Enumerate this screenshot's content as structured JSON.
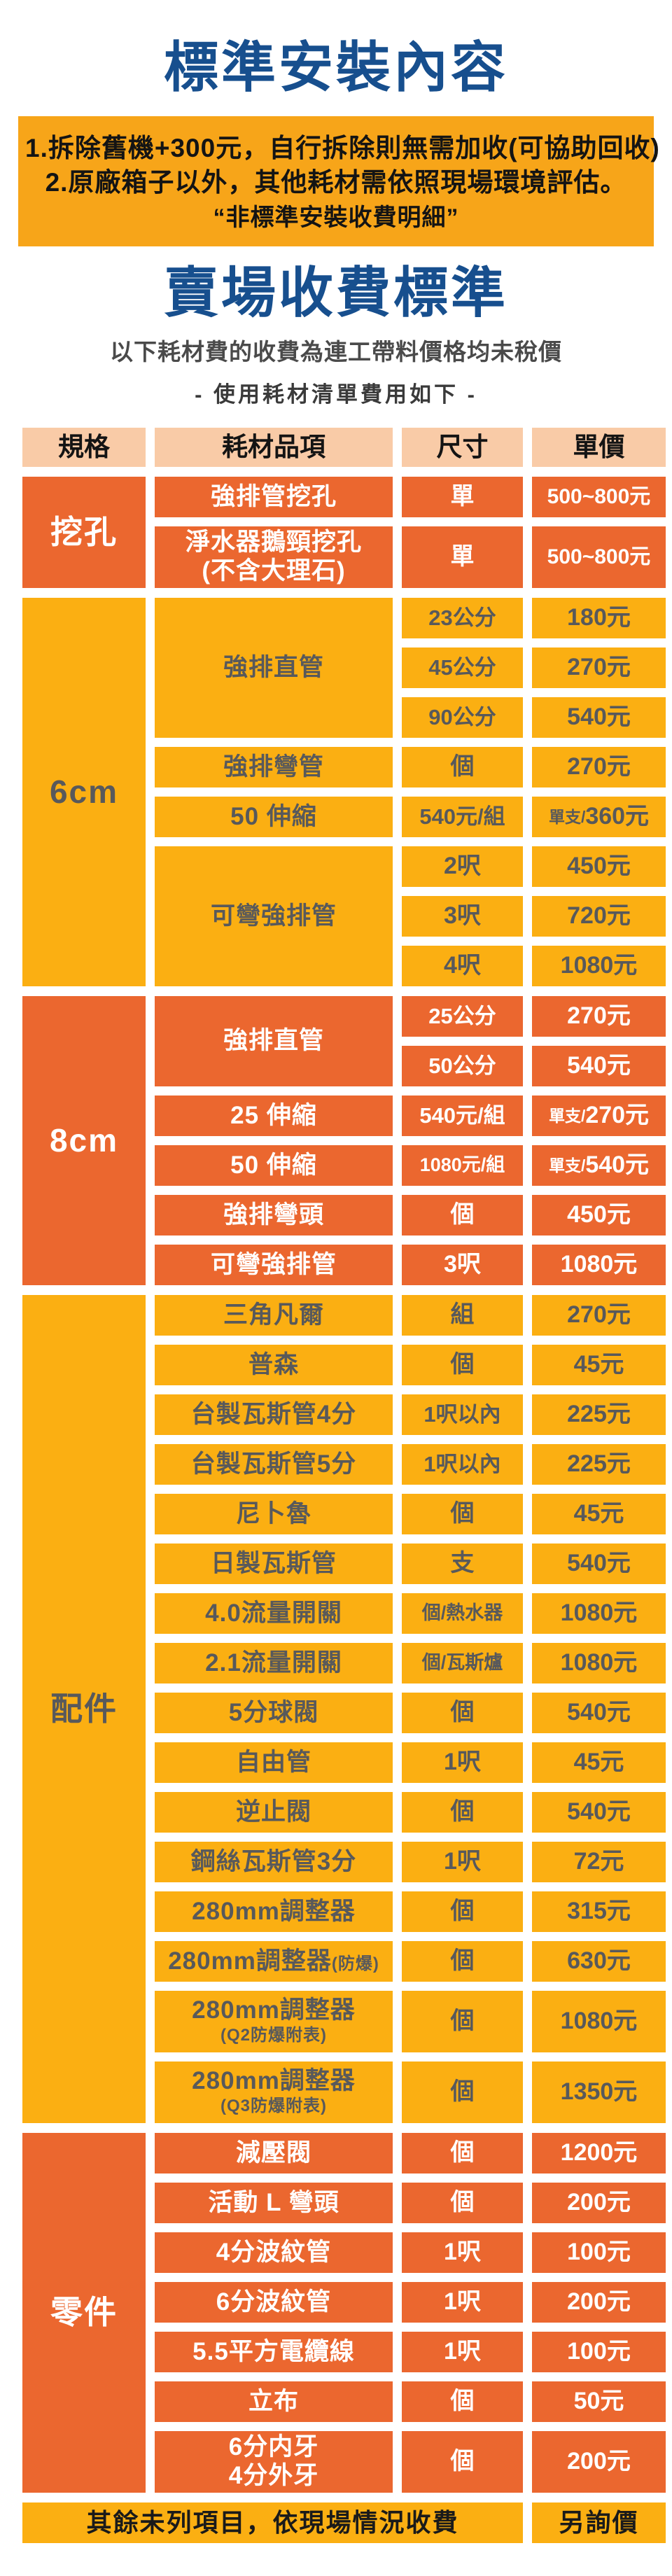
{
  "page": {
    "title1": "標準安裝內容",
    "notes": [
      "1.拆除舊機+300元，自行拆除則無需加收(可協助回收)",
      "2.原廠箱子以外，其他耗材需依照現場環境評估。",
      "“非標準安裝收費明細”"
    ],
    "title2": "賣場收費標準",
    "subtitle1": "以下耗材費的收費為連工帶料價格均未稅價",
    "subtitle2": "- 使用耗材清單費用如下 -"
  },
  "table": {
    "headers": [
      "規格",
      "耗材品項",
      "尺寸",
      "單價"
    ],
    "sections": [
      {
        "label": "挖孔",
        "theme": "dark",
        "groups": [
          {
            "item": "強排管挖孔",
            "rows": [
              {
                "size": "單",
                "price": "500~800元"
              }
            ]
          },
          {
            "item": "淨水器鵝頸挖孔",
            "item_sub": "(不含大理石)",
            "sub_big": true,
            "rows": [
              {
                "size": "單",
                "price": "500~800元",
                "tall": true
              }
            ]
          }
        ]
      },
      {
        "label": "6cm",
        "theme": "yellow",
        "groups": [
          {
            "item": "強排直管",
            "rows": [
              {
                "size": "23公分",
                "price": "180元"
              },
              {
                "size": "45公分",
                "price": "270元"
              },
              {
                "size": "90公分",
                "price": "540元"
              }
            ]
          },
          {
            "item": "強排彎管",
            "rows": [
              {
                "size": "個",
                "price": "270元"
              }
            ]
          },
          {
            "item": "50 伸縮",
            "rows": [
              {
                "size": "540元/組",
                "price": "360元",
                "price_prefix": "單支/"
              }
            ]
          },
          {
            "item": "可彎強排管",
            "rows": [
              {
                "size": "2呎",
                "price": "450元"
              },
              {
                "size": "3呎",
                "price": "720元"
              },
              {
                "size": "4呎",
                "price": "1080元"
              }
            ]
          }
        ]
      },
      {
        "label": "8cm",
        "theme": "dark",
        "groups": [
          {
            "item": "強排直管",
            "rows": [
              {
                "size": "25公分",
                "price": "270元"
              },
              {
                "size": "50公分",
                "price": "540元"
              }
            ]
          },
          {
            "item": "25 伸縮",
            "rows": [
              {
                "size": "540元/組",
                "price": "270元",
                "price_prefix": "單支/"
              }
            ]
          },
          {
            "item": "50 伸縮",
            "rows": [
              {
                "size": "1080元/組",
                "price": "540元",
                "price_prefix": "單支/",
                "size_small": true
              }
            ]
          },
          {
            "item": "強排彎頭",
            "rows": [
              {
                "size": "個",
                "price": "450元"
              }
            ]
          },
          {
            "item": "可彎強排管",
            "rows": [
              {
                "size": "3呎",
                "price": "1080元"
              }
            ]
          }
        ]
      },
      {
        "label": "配件",
        "theme": "yellow",
        "groups": [
          {
            "item": "三角凡爾",
            "rows": [
              {
                "size": "組",
                "price": "270元"
              }
            ]
          },
          {
            "item": "普森",
            "rows": [
              {
                "size": "個",
                "price": "45元"
              }
            ]
          },
          {
            "item": "台製瓦斯管4分",
            "rows": [
              {
                "size": "1呎以內",
                "price": "225元"
              }
            ]
          },
          {
            "item": "台製瓦斯管5分",
            "rows": [
              {
                "size": "1呎以內",
                "price": "225元"
              }
            ]
          },
          {
            "item": "尼卜魯",
            "rows": [
              {
                "size": "個",
                "price": "45元"
              }
            ]
          },
          {
            "item": "日製瓦斯管",
            "rows": [
              {
                "size": "支",
                "price": "540元"
              }
            ]
          },
          {
            "item": "4.0流量開關",
            "rows": [
              {
                "size": "個/熱水器",
                "price": "1080元",
                "size_small": true
              }
            ]
          },
          {
            "item": "2.1流量開關",
            "rows": [
              {
                "size": "個/瓦斯爐",
                "price": "1080元",
                "size_small": true
              }
            ]
          },
          {
            "item": "5分球閥",
            "rows": [
              {
                "size": "個",
                "price": "540元"
              }
            ]
          },
          {
            "item": "自由管",
            "rows": [
              {
                "size": "1呎",
                "price": "45元"
              }
            ]
          },
          {
            "item": "逆止閥",
            "rows": [
              {
                "size": "個",
                "price": "540元"
              }
            ]
          },
          {
            "item": "鋼絲瓦斯管3分",
            "rows": [
              {
                "size": "1呎",
                "price": "72元"
              }
            ]
          },
          {
            "item": "280mm調整器",
            "rows": [
              {
                "size": "個",
                "price": "315元"
              }
            ]
          },
          {
            "item": "280mm調整器",
            "item_suffix": "(防爆)",
            "rows": [
              {
                "size": "個",
                "price": "630元"
              }
            ]
          },
          {
            "item": "280mm調整器",
            "item_sub": "(Q2防爆附表)",
            "rows": [
              {
                "size": "個",
                "price": "1080元",
                "tall": true
              }
            ]
          },
          {
            "item": "280mm調整器",
            "item_sub": "(Q3防爆附表)",
            "rows": [
              {
                "size": "個",
                "price": "1350元",
                "tall": true
              }
            ]
          }
        ]
      },
      {
        "label": "零件",
        "theme": "dark",
        "groups": [
          {
            "item": "減壓閥",
            "rows": [
              {
                "size": "個",
                "price": "1200元"
              }
            ]
          },
          {
            "item": "活動 L 彎頭",
            "rows": [
              {
                "size": "個",
                "price": "200元"
              }
            ]
          },
          {
            "item": "4分波紋管",
            "rows": [
              {
                "size": "1呎",
                "price": "100元"
              }
            ]
          },
          {
            "item": "6分波紋管",
            "rows": [
              {
                "size": "1呎",
                "price": "200元"
              }
            ]
          },
          {
            "item": "5.5平方電纜線",
            "rows": [
              {
                "size": "1呎",
                "price": "100元"
              }
            ]
          },
          {
            "item": "立布",
            "rows": [
              {
                "size": "個",
                "price": "50元"
              }
            ]
          },
          {
            "item": "6分内牙",
            "item_sub": "4分外牙",
            "sub_big": true,
            "rows": [
              {
                "size": "個",
                "price": "200元",
                "tall": true
              }
            ]
          }
        ]
      }
    ],
    "footer": {
      "label": "其餘未列項目，依現場情況收費",
      "price": "另詢價"
    }
  },
  "colors": {
    "title_blue": "#174F8E",
    "note_box_gold": "#F7A519",
    "header_peach": "#F9CBA7",
    "section_orange": "#EB672F",
    "section_yellow": "#FBAF12",
    "yellow_text_gray": "#58595B"
  }
}
